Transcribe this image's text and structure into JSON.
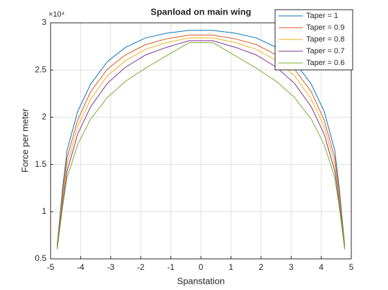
{
  "chart_data": {
    "type": "line",
    "title": "Spanload on main wing",
    "xlabel": "Spanstation",
    "ylabel": "Force per meter",
    "y_exponent": "×10⁴",
    "x": [
      -4.78,
      -4.6,
      -4.45,
      -4.1,
      -3.67,
      -3.11,
      -2.51,
      -1.84,
      -1.15,
      -0.4,
      0.4,
      1.15,
      1.84,
      2.51,
      3.11,
      3.67,
      4.1,
      4.45,
      4.6,
      4.78
    ],
    "series": [
      {
        "name": "Taper = 1",
        "color": "#0072bd",
        "values": [
          0.65,
          1.25,
          1.65,
          2.06,
          2.35,
          2.59,
          2.74,
          2.84,
          2.89,
          2.92,
          2.92,
          2.89,
          2.84,
          2.74,
          2.59,
          2.35,
          2.06,
          1.65,
          1.25,
          0.65
        ]
      },
      {
        "name": "Taper = 0.9",
        "color": "#d95319",
        "values": [
          0.63,
          1.2,
          1.57,
          1.97,
          2.27,
          2.51,
          2.66,
          2.77,
          2.83,
          2.87,
          2.87,
          2.83,
          2.77,
          2.66,
          2.51,
          2.27,
          1.97,
          1.57,
          1.2,
          0.63
        ]
      },
      {
        "name": "Taper = 0.8",
        "color": "#edb120",
        "values": [
          0.62,
          1.15,
          1.5,
          1.9,
          2.19,
          2.44,
          2.6,
          2.72,
          2.79,
          2.84,
          2.84,
          2.79,
          2.72,
          2.6,
          2.44,
          2.19,
          1.9,
          1.5,
          1.15,
          0.62
        ]
      },
      {
        "name": "Taper = 0.7",
        "color": "#7e2f8e",
        "values": [
          0.61,
          1.1,
          1.43,
          1.82,
          2.11,
          2.36,
          2.53,
          2.66,
          2.74,
          2.81,
          2.81,
          2.74,
          2.66,
          2.53,
          2.36,
          2.11,
          1.82,
          1.43,
          1.1,
          0.61
        ]
      },
      {
        "name": "Taper = 0.6",
        "color": "#77ac30",
        "values": [
          0.6,
          1.05,
          1.36,
          1.71,
          1.98,
          2.21,
          2.38,
          2.52,
          2.65,
          2.79,
          2.79,
          2.65,
          2.52,
          2.38,
          2.21,
          1.98,
          1.71,
          1.36,
          1.05,
          0.6
        ]
      }
    ],
    "xlim": [
      -5,
      5
    ],
    "xticks": [
      -5,
      -4,
      -3,
      -2,
      -1,
      0,
      1,
      2,
      3,
      4,
      5
    ],
    "ylim": [
      0.5,
      3
    ],
    "yticks": [
      0.5,
      1,
      1.5,
      2,
      2.5,
      3
    ],
    "grid": true,
    "legend": "northeast"
  }
}
